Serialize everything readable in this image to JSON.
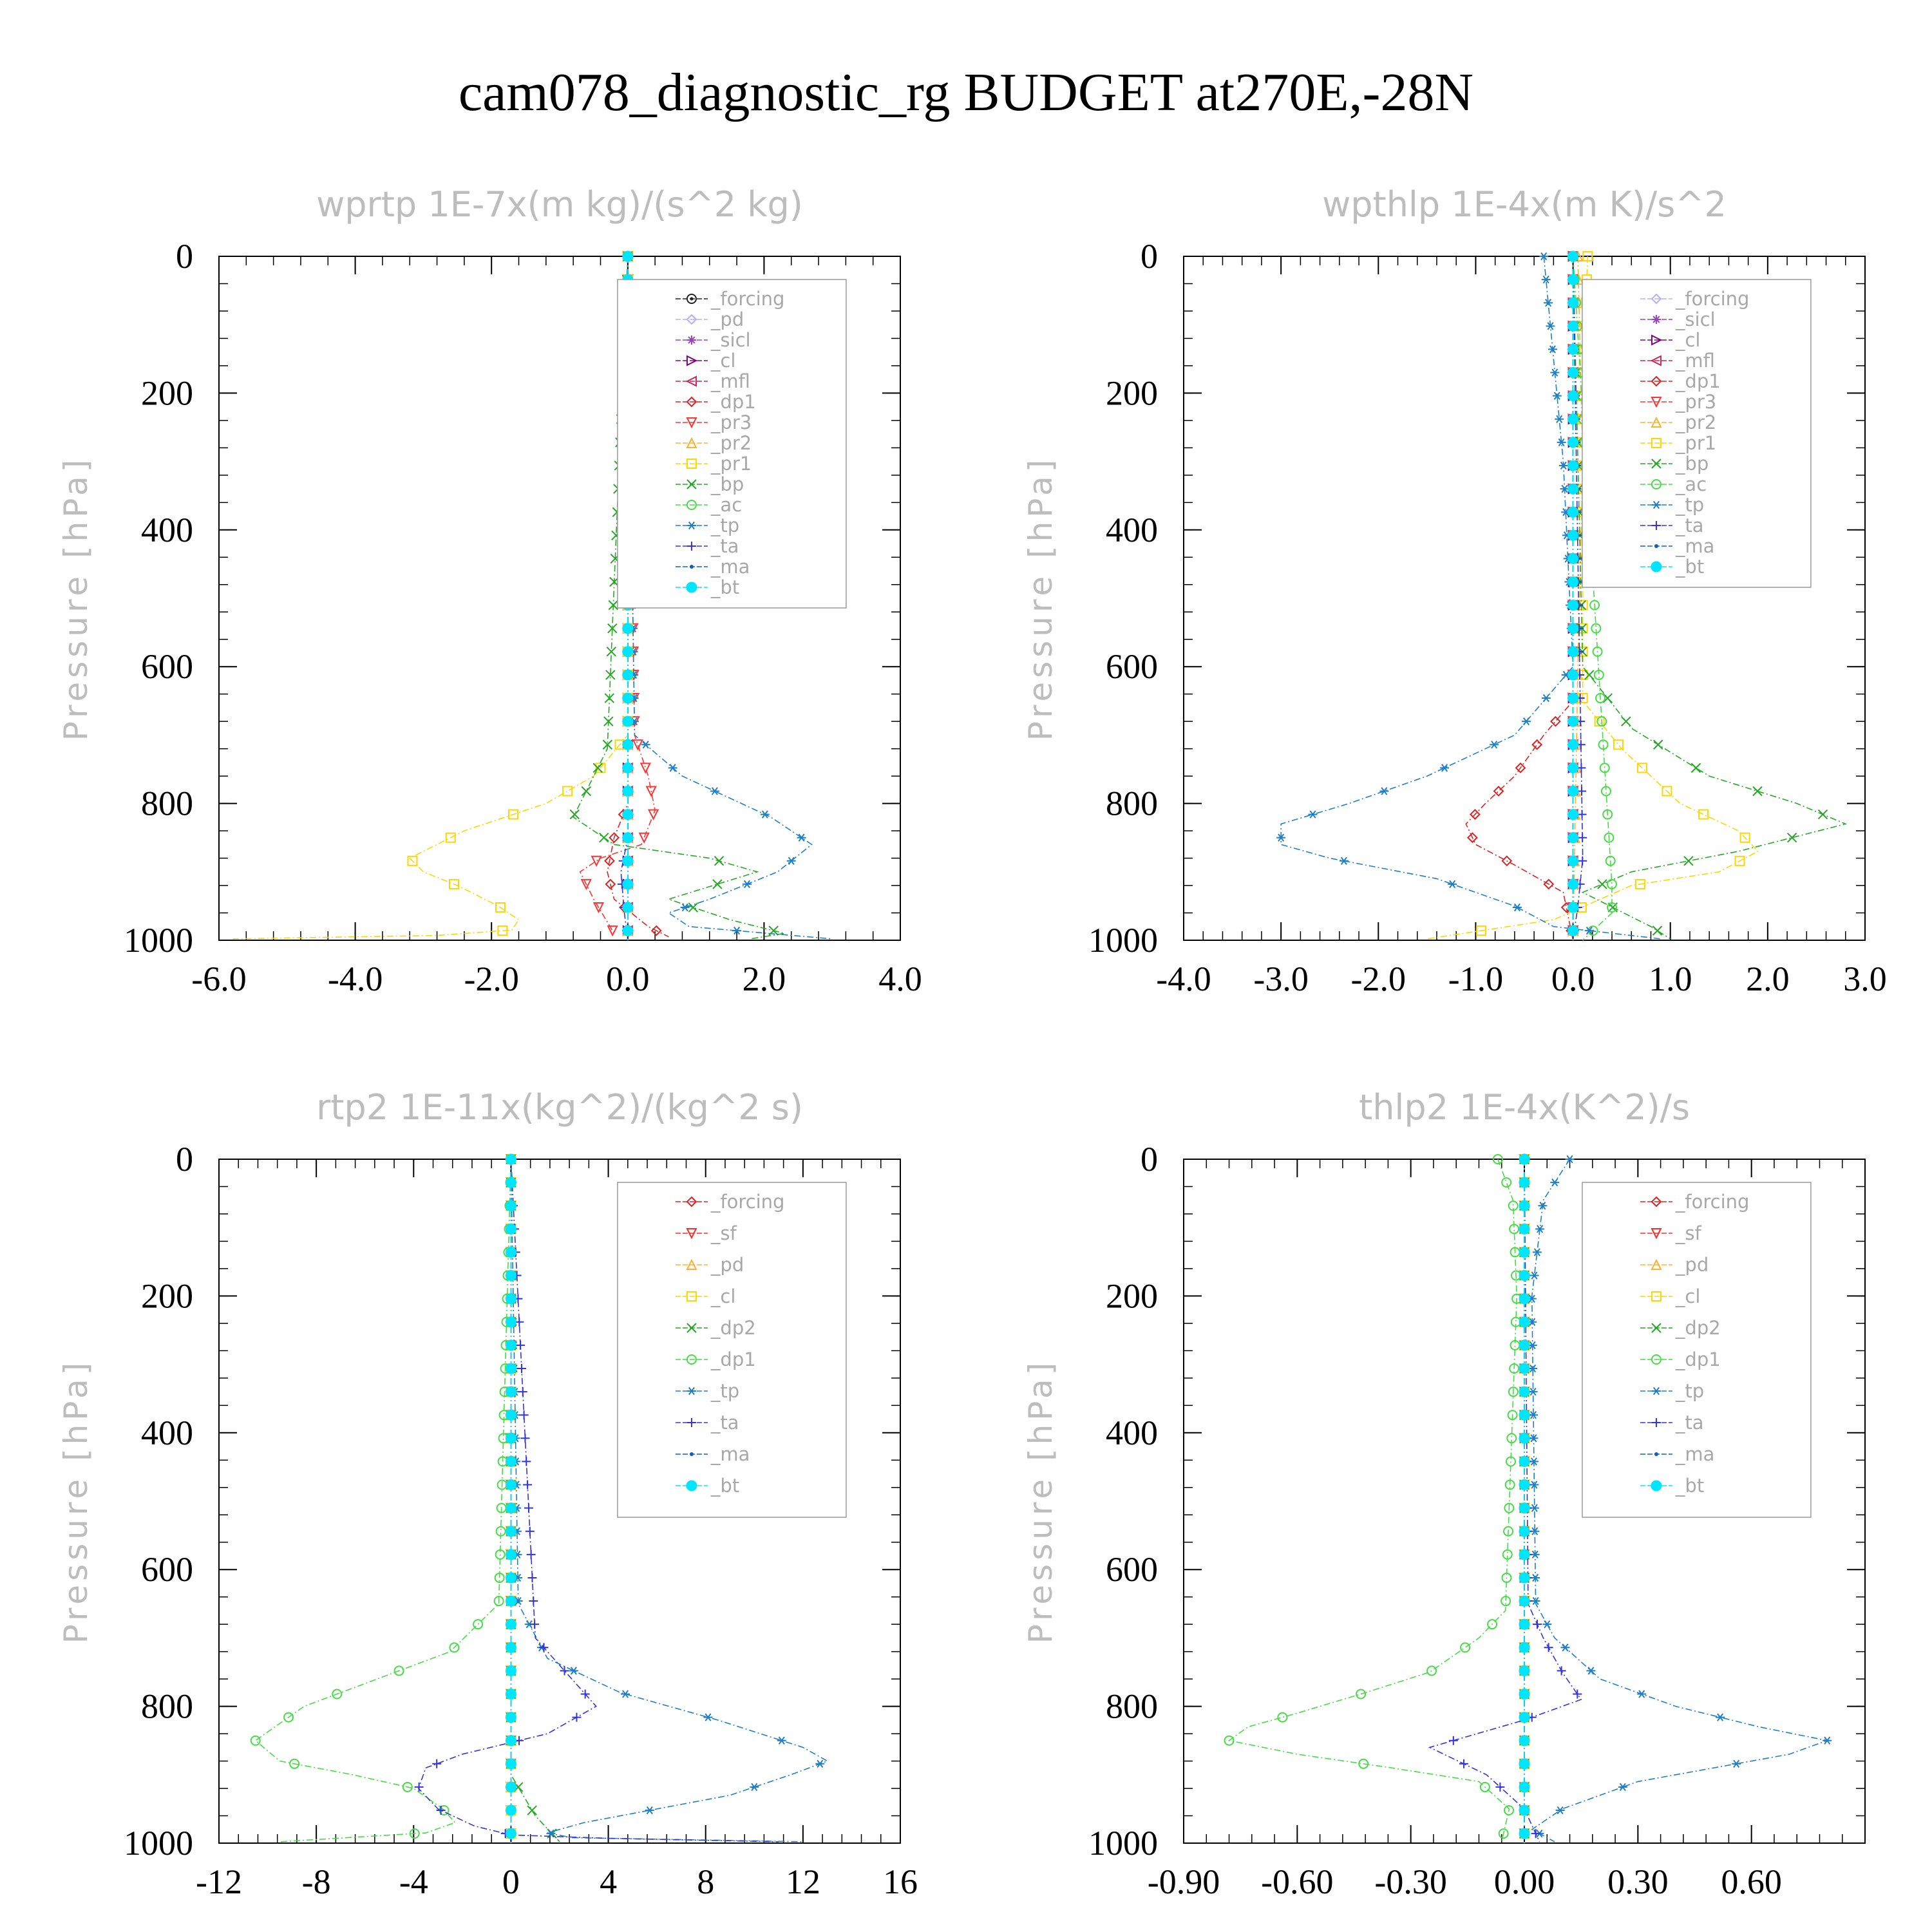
{
  "figure": {
    "title": "cam078_diagnostic_rg  BUDGET at270E,-28N"
  },
  "colors": {
    "forcing": "#222222",
    "pd": "#b0b0ff",
    "sicl": "#9a40c0",
    "cl": "#800080",
    "mfl": "#cc2255",
    "dp1": "#dd2222",
    "pr3": "#ff3333",
    "pr2": "#ffb030",
    "pr1": "#ffd400",
    "bp": "#22aa22",
    "ac": "#44dd44",
    "tp": "#1e7fc8",
    "ta": "#3333dd",
    "ma": "#1060c0",
    "bt": "#00e5ff",
    "sf": "#ff2a2a"
  },
  "chart_data": [
    {
      "type": "line",
      "title": "wprtp  1E-7x(m kg)/(s^2 kg)",
      "ylabel": "Pressure [hPa]",
      "xlim": [
        -6.0,
        4.0
      ],
      "ylim": [
        1000,
        0
      ],
      "xticks": [
        "-6.0",
        "-4.0",
        "-2.0",
        "0.0",
        "2.0",
        "4.0"
      ],
      "yticks": [
        "0",
        "200",
        "400",
        "600",
        "800",
        "1000"
      ],
      "legend_position": "top-right",
      "legend": [
        "_forcing",
        "_pd",
        "_sicl",
        "_cl",
        "_mfl",
        "_dp1",
        "_pr3",
        "_pr2",
        "_pr1",
        "_bp",
        "_ac",
        "_tp",
        "_ta",
        "_ma",
        "_bt"
      ],
      "series": [
        {
          "name": "_forcing",
          "key": "forcing",
          "marker": "circle-dot",
          "x": [
            0,
            0
          ],
          "y": [
            0,
            1000
          ]
        },
        {
          "name": "_pd",
          "key": "pd",
          "marker": "diamond",
          "x": [
            0,
            0
          ],
          "y": [
            0,
            1000
          ]
        },
        {
          "name": "_sicl",
          "key": "sicl",
          "marker": "star",
          "x": [
            0,
            0
          ],
          "y": [
            0,
            1000
          ]
        },
        {
          "name": "_cl",
          "key": "cl",
          "marker": "triangle-right",
          "x": [
            0,
            0
          ],
          "y": [
            0,
            1000
          ]
        },
        {
          "name": "_mfl",
          "key": "mfl",
          "marker": "triangle-left",
          "x": [
            0,
            0
          ],
          "y": [
            0,
            1000
          ]
        },
        {
          "name": "_dp1",
          "key": "dp1",
          "marker": "diamond",
          "x": [
            0,
            0,
            0,
            -0.2,
            -0.3,
            -0.2,
            0.3,
            0.6
          ],
          "y": [
            0,
            700,
            800,
            850,
            900,
            940,
            980,
            995
          ]
        },
        {
          "name": "_pr3",
          "key": "pr3",
          "marker": "triangle-down",
          "x": [
            0,
            0.1,
            0.3,
            0.4,
            0.2,
            -0.4,
            -0.7,
            -0.5,
            -0.2
          ],
          "y": [
            0,
            700,
            760,
            810,
            860,
            880,
            900,
            940,
            990
          ]
        },
        {
          "name": "_pr2",
          "key": "pr2",
          "marker": "triangle-up",
          "x": [
            0,
            0
          ],
          "y": [
            0,
            1000
          ]
        },
        {
          "name": "_pr1",
          "key": "pr1",
          "marker": "square",
          "x": [
            0,
            0,
            -0.5,
            -1.2,
            -2.4,
            -3.2,
            -3.0,
            -2.5,
            -1.9,
            -1.6,
            -1.7,
            -2.8,
            -5.8
          ],
          "y": [
            0,
            700,
            760,
            800,
            840,
            880,
            900,
            920,
            950,
            970,
            985,
            993,
            998
          ]
        },
        {
          "name": "_bp",
          "key": "bp",
          "marker": "x",
          "x": [
            0,
            -0.3,
            -0.8,
            -0.2,
            1.2,
            1.9,
            0.6,
            1.5,
            2.3,
            1.8
          ],
          "y": [
            0,
            720,
            820,
            860,
            880,
            900,
            940,
            970,
            990,
            998
          ]
        },
        {
          "name": "_ac",
          "key": "ac",
          "marker": "circle",
          "x": [
            0,
            0
          ],
          "y": [
            0,
            1000
          ]
        },
        {
          "name": "_tp",
          "key": "tp",
          "marker": "asterisk",
          "x": [
            0,
            0.1,
            0.8,
            2.1,
            2.7,
            2.2,
            1.2,
            0.6,
            0.9,
            3.0
          ],
          "y": [
            0,
            700,
            760,
            820,
            860,
            900,
            940,
            960,
            980,
            998
          ]
        },
        {
          "name": "_ta",
          "key": "ta",
          "marker": "plus",
          "x": [
            0,
            0,
            -0.1,
            -0.05,
            0
          ],
          "y": [
            0,
            850,
            900,
            960,
            1000
          ]
        },
        {
          "name": "_ma",
          "key": "ma",
          "marker": "dot",
          "x": [
            0,
            0
          ],
          "y": [
            0,
            1000
          ]
        },
        {
          "name": "_bt",
          "key": "bt",
          "marker": "filled-circle",
          "x": [
            0,
            0
          ],
          "y": [
            0,
            1000
          ]
        }
      ]
    },
    {
      "type": "line",
      "title": "wpthlp  1E-4x(m K)/s^2",
      "ylabel": "Pressure [hPa]",
      "xlim": [
        -4.0,
        3.0
      ],
      "ylim": [
        1000,
        0
      ],
      "xticks": [
        "-4.0",
        "-3.0",
        "-2.0",
        "-1.0",
        "0.0",
        "1.0",
        "2.0",
        "3.0"
      ],
      "yticks": [
        "0",
        "200",
        "400",
        "600",
        "800",
        "1000"
      ],
      "legend_position": "top-right",
      "legend": [
        "_forcing",
        "_sicl",
        "_cl",
        "_mfl",
        "_dp1",
        "_pr3",
        "_pr2",
        "_pr1",
        "_bp",
        "_ac",
        "_tp",
        "_ta",
        "_ma",
        "_bt"
      ],
      "series": [
        {
          "name": "_forcing",
          "key": "pd",
          "marker": "diamond",
          "x": [
            0,
            0
          ],
          "y": [
            0,
            1000
          ]
        },
        {
          "name": "_sicl",
          "key": "sicl",
          "marker": "star",
          "x": [
            0,
            0
          ],
          "y": [
            0,
            1000
          ]
        },
        {
          "name": "_cl",
          "key": "cl",
          "marker": "triangle-right",
          "x": [
            0,
            0
          ],
          "y": [
            0,
            1000
          ]
        },
        {
          "name": "_mfl",
          "key": "mfl",
          "marker": "triangle-left",
          "x": [
            0,
            0
          ],
          "y": [
            0,
            1000
          ]
        },
        {
          "name": "_dp1",
          "key": "dp1",
          "marker": "diamond",
          "x": [
            0,
            0,
            -0.3,
            -0.6,
            -0.9,
            -1.1,
            -1.0,
            -0.6,
            -0.1,
            0
          ],
          "y": [
            0,
            650,
            700,
            760,
            800,
            830,
            860,
            890,
            930,
            1000
          ]
        },
        {
          "name": "_pr3",
          "key": "pr3",
          "marker": "triangle-down",
          "x": [
            0,
            0
          ],
          "y": [
            0,
            1000
          ]
        },
        {
          "name": "_pr2",
          "key": "pr2",
          "marker": "triangle-up",
          "x": [
            0.05,
            0.1,
            0.05,
            0
          ],
          "y": [
            0,
            300,
            600,
            1000
          ]
        },
        {
          "name": "_pr1",
          "key": "pr1",
          "marker": "square",
          "x": [
            0.15,
            0.1,
            0.1,
            0.5,
            1.1,
            1.7,
            1.9,
            1.5,
            0.6,
            -0.2,
            -1.5
          ],
          "y": [
            0,
            200,
            650,
            720,
            800,
            840,
            870,
            900,
            920,
            970,
            998
          ]
        },
        {
          "name": "_bp",
          "key": "bp",
          "marker": "x",
          "x": [
            0,
            0.1,
            0.6,
            1.4,
            2.3,
            2.8,
            1.7,
            0.6,
            0.1,
            0.8,
            1.0
          ],
          "y": [
            0,
            600,
            690,
            760,
            800,
            830,
            870,
            900,
            930,
            980,
            998
          ]
        },
        {
          "name": "_ac",
          "key": "ac",
          "marker": "circle",
          "x": [
            0,
            0.4,
            0.4,
            0.1
          ],
          "y": [
            0,
            920,
            960,
            1000
          ]
        },
        {
          "name": "_tp",
          "key": "tp",
          "marker": "asterisk",
          "x": [
            -0.3,
            -0.1,
            0,
            -0.6,
            -1.5,
            -2.3,
            -3.0,
            -3.0,
            -2.5,
            -1.4,
            -0.6,
            -0.2,
            0.9
          ],
          "y": [
            0,
            300,
            600,
            700,
            760,
            800,
            830,
            860,
            880,
            910,
            950,
            980,
            998
          ]
        },
        {
          "name": "_ta",
          "key": "ta",
          "marker": "plus",
          "x": [
            0,
            0.1,
            0.05,
            0
          ],
          "y": [
            0,
            880,
            950,
            1000
          ]
        },
        {
          "name": "_ma",
          "key": "ma",
          "marker": "dot",
          "x": [
            0,
            0
          ],
          "y": [
            0,
            1000
          ]
        },
        {
          "name": "_bt",
          "key": "bt",
          "marker": "filled-circle",
          "x": [
            0,
            0
          ],
          "y": [
            0,
            1000
          ]
        }
      ]
    },
    {
      "type": "line",
      "title": "rtp2  1E-11x(kg^2)/(kg^2 s)",
      "ylabel": "Pressure [hPa]",
      "xlim": [
        -12,
        16
      ],
      "ylim": [
        1000,
        0
      ],
      "xticks": [
        "-12",
        "-8",
        "-4",
        "0",
        "4",
        "8",
        "12",
        "16"
      ],
      "yticks": [
        "0",
        "200",
        "400",
        "600",
        "800",
        "1000"
      ],
      "legend_position": "top-right",
      "legend": [
        "_forcing",
        "_sf",
        "_pd",
        "_cl",
        "_dp2",
        "_dp1",
        "_tp",
        "_ta",
        "_ma",
        "_bt"
      ],
      "series": [
        {
          "name": "_forcing",
          "key": "dp1",
          "marker": "diamond",
          "x": [
            0,
            0
          ],
          "y": [
            0,
            1000
          ]
        },
        {
          "name": "_sf",
          "key": "sf",
          "marker": "triangle-down",
          "x": [
            0,
            0
          ],
          "y": [
            0,
            1000
          ]
        },
        {
          "name": "_pd",
          "key": "pr2",
          "marker": "triangle-up",
          "x": [
            0,
            0
          ],
          "y": [
            0,
            1000
          ]
        },
        {
          "name": "_cl",
          "key": "pr1",
          "marker": "square",
          "x": [
            0,
            0
          ],
          "y": [
            0,
            1000
          ]
        },
        {
          "name": "_dp2",
          "key": "bp",
          "marker": "x",
          "x": [
            0,
            0,
            1,
            2
          ],
          "y": [
            0,
            900,
            960,
            998
          ]
        },
        {
          "name": "_dp1",
          "key": "ac",
          "marker": "circle",
          "x": [
            0,
            -0.5,
            -2.5,
            -5.5,
            -8.5,
            -10.5,
            -9.5,
            -6.5,
            -4.0,
            -2.8,
            -2.3,
            -3.5,
            -9.5
          ],
          "y": [
            0,
            650,
            720,
            760,
            800,
            850,
            880,
            900,
            920,
            950,
            970,
            985,
            998
          ]
        },
        {
          "name": "_tp",
          "key": "tp",
          "marker": "asterisk",
          "x": [
            0,
            0.3,
            1.5,
            4.5,
            8.5,
            12.0,
            13.0,
            11.5,
            9.0,
            6.0,
            3.0,
            1.5,
            2.5,
            12.0
          ],
          "y": [
            0,
            650,
            730,
            780,
            820,
            860,
            880,
            900,
            930,
            950,
            970,
            985,
            992,
            998
          ]
        },
        {
          "name": "_ta",
          "key": "ta",
          "marker": "plus",
          "x": [
            0,
            1.0,
            2.5,
            3.5,
            1.5,
            -2.0,
            -3.5,
            -3.8,
            -3.0,
            -1.5,
            0,
            4.0,
            11.0
          ],
          "y": [
            0,
            700,
            760,
            800,
            840,
            870,
            890,
            920,
            950,
            975,
            988,
            993,
            998
          ]
        },
        {
          "name": "_ma",
          "key": "ma",
          "marker": "dot",
          "x": [
            0,
            0
          ],
          "y": [
            0,
            1000
          ]
        },
        {
          "name": "_bt",
          "key": "bt",
          "marker": "filled-circle",
          "x": [
            0,
            0
          ],
          "y": [
            0,
            1000
          ]
        }
      ]
    },
    {
      "type": "line",
      "title": "thlp2  1E-4x(K^2)/s",
      "ylabel": "Pressure [hPa]",
      "xlim": [
        -0.9,
        0.9
      ],
      "ylim": [
        1000,
        0
      ],
      "xticks": [
        "-0.90",
        "-0.60",
        "-0.30",
        "0.00",
        "0.30",
        "0.60"
      ],
      "yticks": [
        "0",
        "200",
        "400",
        "600",
        "800",
        "1000"
      ],
      "legend_position": "top-right",
      "legend": [
        "_forcing",
        "_sf",
        "_pd",
        "_cl",
        "_dp2",
        "_dp1",
        "_tp",
        "_ta",
        "_ma",
        "_bt"
      ],
      "series": [
        {
          "name": "_forcing",
          "key": "dp1",
          "marker": "diamond",
          "x": [
            0,
            0
          ],
          "y": [
            0,
            1000
          ]
        },
        {
          "name": "_sf",
          "key": "sf",
          "marker": "triangle-down",
          "x": [
            0,
            0
          ],
          "y": [
            0,
            1000
          ]
        },
        {
          "name": "_pd",
          "key": "pr2",
          "marker": "triangle-up",
          "x": [
            0,
            0
          ],
          "y": [
            0,
            1000
          ]
        },
        {
          "name": "_cl",
          "key": "pr1",
          "marker": "square",
          "x": [
            0,
            0
          ],
          "y": [
            0,
            1000
          ]
        },
        {
          "name": "_dp2",
          "key": "bp",
          "marker": "x",
          "x": [
            0,
            0
          ],
          "y": [
            0,
            1000
          ]
        },
        {
          "name": "_dp1",
          "key": "ac",
          "marker": "circle",
          "x": [
            -0.07,
            -0.03,
            -0.02,
            -0.05,
            -0.12,
            -0.25,
            -0.42,
            -0.6,
            -0.73,
            -0.78,
            -0.6,
            -0.35,
            -0.12,
            -0.04,
            -0.06
          ],
          "y": [
            0,
            60,
            200,
            660,
            700,
            750,
            780,
            810,
            830,
            850,
            870,
            890,
            910,
            950,
            998
          ]
        },
        {
          "name": "_tp",
          "key": "tp",
          "marker": "asterisk",
          "x": [
            0.12,
            0.05,
            0.02,
            0.03,
            0.08,
            0.2,
            0.4,
            0.62,
            0.8,
            0.7,
            0.3,
            0.1,
            0.02,
            0.08
          ],
          "y": [
            0,
            60,
            200,
            650,
            700,
            760,
            800,
            830,
            850,
            870,
            910,
            950,
            980,
            998
          ]
        },
        {
          "name": "_ta",
          "key": "ta",
          "marker": "plus",
          "x": [
            0,
            0.01,
            0.05,
            0.1,
            0.15,
            0.0,
            -0.25,
            -0.1,
            0.0,
            0.04
          ],
          "y": [
            0,
            650,
            700,
            750,
            790,
            820,
            860,
            900,
            950,
            998
          ]
        },
        {
          "name": "_ma",
          "key": "ma",
          "marker": "dot",
          "x": [
            0,
            0
          ],
          "y": [
            0,
            1000
          ]
        },
        {
          "name": "_bt",
          "key": "bt",
          "marker": "filled-circle",
          "x": [
            0,
            0
          ],
          "y": [
            0,
            1000
          ]
        }
      ]
    }
  ]
}
